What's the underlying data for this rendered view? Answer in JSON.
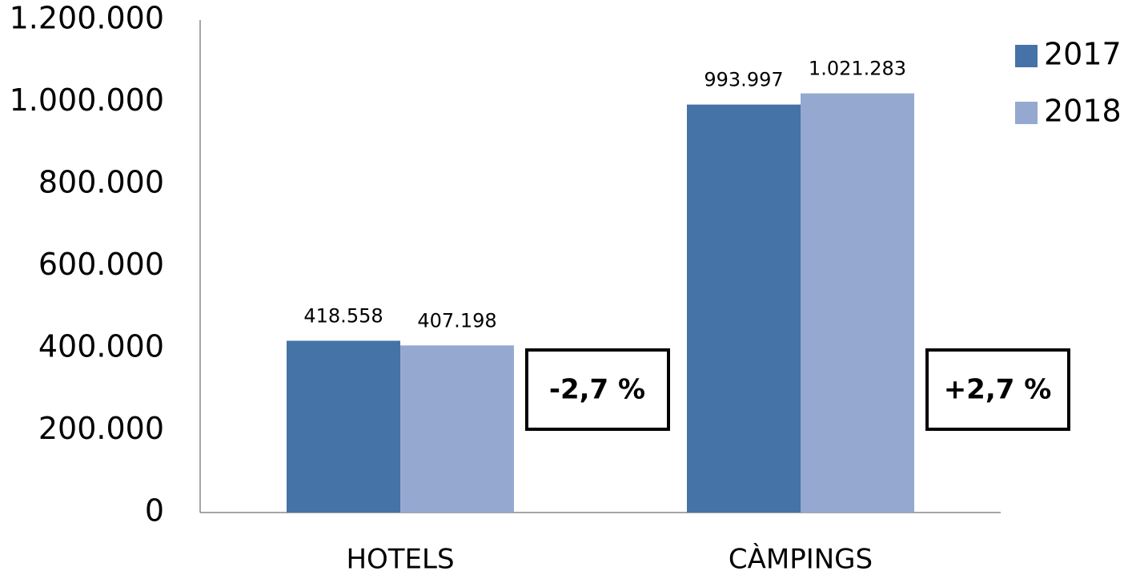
{
  "chart_data": {
    "type": "bar",
    "categories": [
      "HOTELS",
      "CÀMPINGS"
    ],
    "series": [
      {
        "name": "2017",
        "color": "#4573a7",
        "values": [
          418558,
          993997
        ],
        "value_labels": [
          "418.558",
          "993.997"
        ]
      },
      {
        "name": "2018",
        "color": "#95a9d0",
        "values": [
          407198,
          1021283
        ],
        "value_labels": [
          "407.198",
          "1.021.283"
        ]
      }
    ],
    "ylim": [
      0,
      1200000
    ],
    "yticks": [
      0,
      {
        "value": 200000,
        "label": "200.000"
      },
      {
        "value": 400000,
        "label": "400.000"
      },
      {
        "value": 600000,
        "label": "600.000"
      },
      {
        "value": 800000,
        "label": "800.000"
      },
      {
        "value": 1000000,
        "label": "1.000.000"
      },
      {
        "value": 1200000,
        "label": "1.200.000"
      }
    ],
    "grid": false,
    "legend": "right",
    "annotations": [
      "-2,7 %",
      "+2,7 %"
    ]
  }
}
